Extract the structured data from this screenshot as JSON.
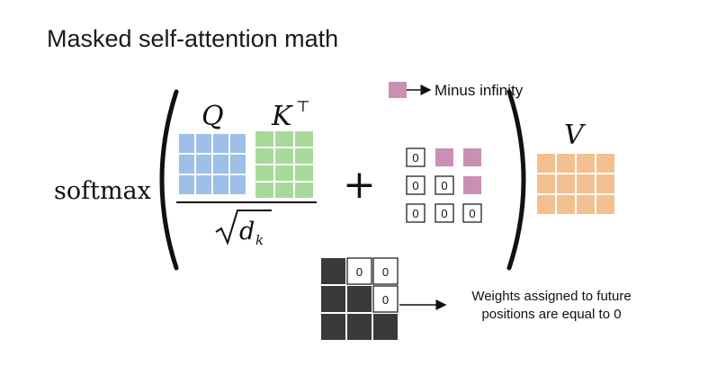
{
  "title": "Masked self-attention math",
  "formula": {
    "softmax": "softmax",
    "q_label": "Q",
    "k_label": "K",
    "k_sup": "⊤",
    "sqrt_d": "d",
    "sqrt_sub": "k",
    "plus": "+",
    "v_label": "V"
  },
  "legend": {
    "text": "Minus infinity"
  },
  "mask_matrix": {
    "rows": [
      [
        "0",
        "-inf",
        "-inf"
      ],
      [
        "0",
        "0",
        "-inf"
      ],
      [
        "0",
        "0",
        "0"
      ]
    ]
  },
  "weights_matrix": {
    "rows": [
      [
        "",
        "0",
        "0"
      ],
      [
        "",
        "",
        "0"
      ],
      [
        "",
        "",
        ""
      ]
    ]
  },
  "weights_note": {
    "line1": "Weights assigned to future",
    "line2": "positions are equal to 0"
  },
  "colors": {
    "q": "#9dbfe8",
    "k": "#a9d99a",
    "v": "#f5c08f",
    "minus_inf": "#c98fb5",
    "dark_cell": "#3a3a3a",
    "q_label": "#4a7fb8",
    "k_label": "#5aa84a",
    "v_label": "#e08a2a"
  }
}
